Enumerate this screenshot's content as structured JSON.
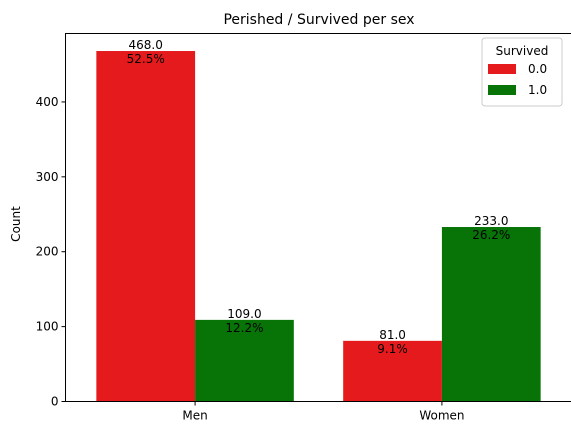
{
  "chart_data": {
    "type": "bar",
    "title": "Perished / Survived per sex",
    "xlabel": "",
    "ylabel": "Count",
    "categories": [
      "Men",
      "Women"
    ],
    "series": [
      {
        "name": "0.0",
        "color": "#e41a1c",
        "values": [
          468.0,
          81.0
        ],
        "value_labels": [
          "468.0",
          "81.0"
        ],
        "percent_labels": [
          "52.5%",
          "9.1%"
        ]
      },
      {
        "name": "1.0",
        "color": "#087408",
        "values": [
          109.0,
          233.0
        ],
        "value_labels": [
          "109.0",
          "233.0"
        ],
        "percent_labels": [
          "12.2%",
          "26.2%"
        ]
      }
    ],
    "ylim": [
      0,
      491.4
    ],
    "yticks": [
      0,
      100,
      200,
      300,
      400
    ],
    "legend": {
      "title": "Survived",
      "position": "top-right"
    },
    "grid": false
  }
}
